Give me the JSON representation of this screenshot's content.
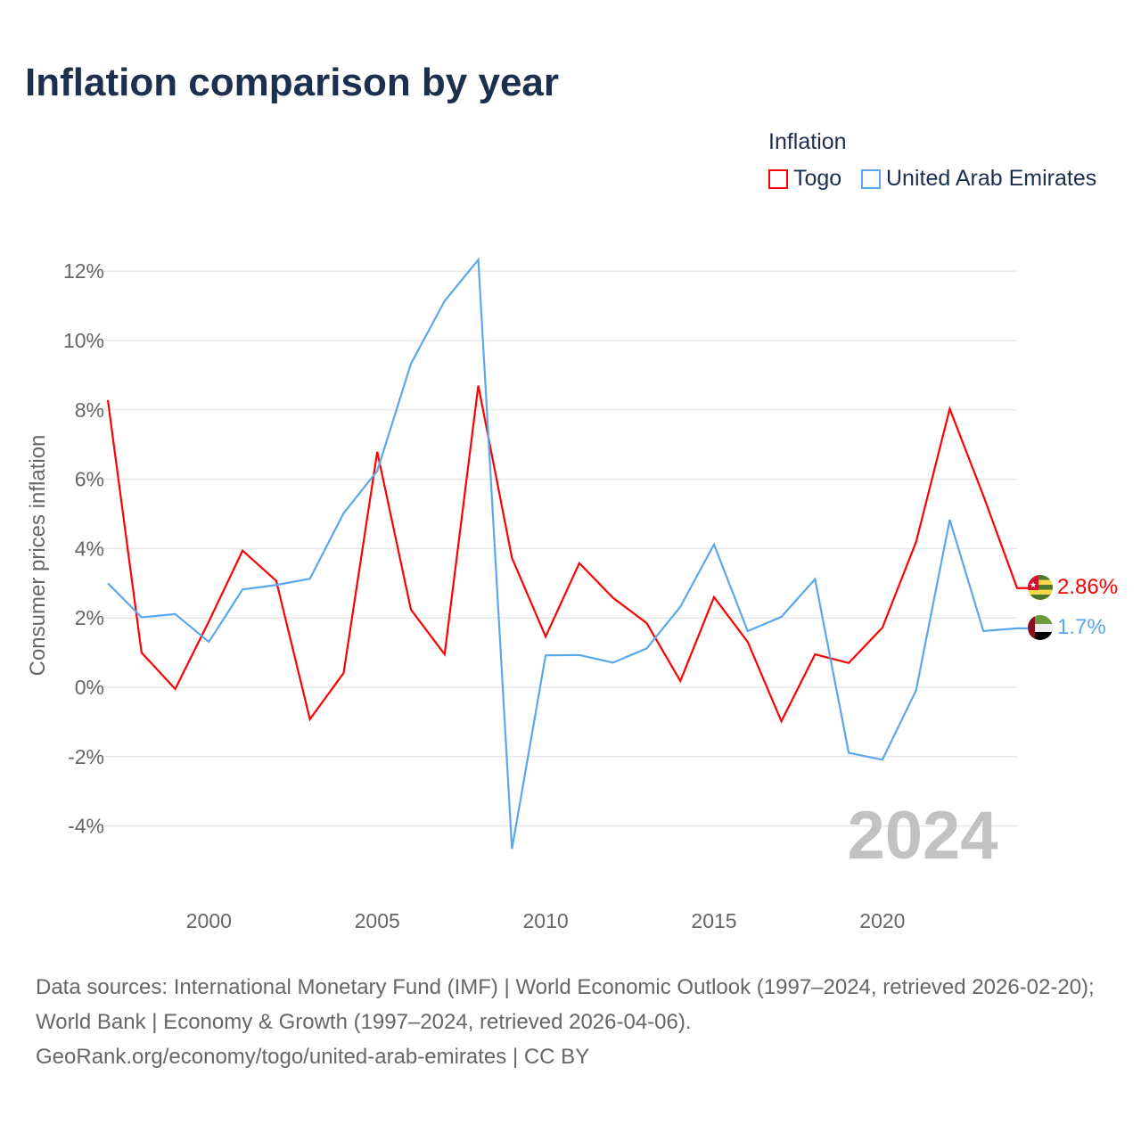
{
  "title": "Inflation comparison by year",
  "legend": {
    "title": "Inflation",
    "items": [
      {
        "label": "Togo",
        "color": "#ff0000"
      },
      {
        "label": "United Arab Emirates",
        "color": "#5aa7ec"
      }
    ]
  },
  "watermark_year": "2024",
  "end_labels": [
    {
      "text": "2.86%",
      "flag": "togo-flag"
    },
    {
      "text": "1.7%",
      "flag": "uae-flag"
    }
  ],
  "footer": {
    "sources": "Data sources: International Monetary Fund (IMF) | World Economic Outlook (1997–2024, retrieved 2026-02-20); World Bank | Economy & Growth (1997–2024, retrieved 2026-04-06).",
    "credit": "GeoRank.org/economy/togo/united-arab-emirates | CC BY"
  },
  "chart_data": {
    "type": "line",
    "title": "Inflation comparison by year",
    "xlabel": "",
    "ylabel": "Consumer prices inflation",
    "xlim": [
      1997,
      2024
    ],
    "ylim": [
      -4,
      12
    ],
    "x_ticks": [
      "2000",
      "2005",
      "2010",
      "2015",
      "2020"
    ],
    "y_ticks": [
      "12%",
      "10%",
      "8%",
      "6%",
      "4%",
      "2%",
      "0%",
      "-2%",
      "-4%"
    ],
    "grid": true,
    "legend_position": "top-right",
    "x": [
      1997,
      1998,
      1999,
      2000,
      2001,
      2002,
      2003,
      2004,
      2005,
      2006,
      2007,
      2008,
      2009,
      2010,
      2011,
      2012,
      2013,
      2014,
      2015,
      2016,
      2017,
      2018,
      2019,
      2020,
      2021,
      2022,
      2023,
      2024
    ],
    "series": [
      {
        "name": "Togo",
        "color": "#ff0000",
        "values": [
          8.28,
          1.0,
          -0.05,
          1.9,
          3.94,
          3.07,
          -0.92,
          0.41,
          6.79,
          2.24,
          0.95,
          8.7,
          3.73,
          1.46,
          3.58,
          2.58,
          1.85,
          0.18,
          2.6,
          1.31,
          -0.98,
          0.95,
          0.7,
          1.72,
          4.19,
          8.03,
          5.52,
          2.86
        ]
      },
      {
        "name": "United Arab Emirates",
        "color": "#5aa7ec",
        "values": [
          3.0,
          2.02,
          2.11,
          1.31,
          2.82,
          2.95,
          3.13,
          5.02,
          6.24,
          9.33,
          11.14,
          12.33,
          -4.66,
          0.92,
          0.93,
          0.71,
          1.12,
          2.32,
          4.12,
          1.62,
          2.03,
          3.12,
          -1.89,
          -2.09,
          -0.09,
          4.83,
          1.62,
          1.7
        ]
      }
    ]
  }
}
